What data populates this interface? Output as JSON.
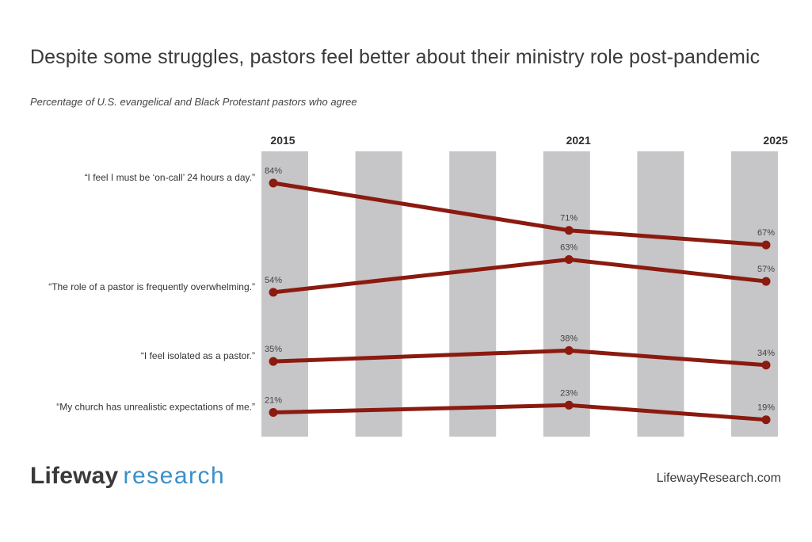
{
  "title": "Despite some struggles, pastors feel better about their ministry role post-pandemic",
  "subtitle": "Percentage of U.S. evangelical and Black Protestant pastors who agree",
  "footer": {
    "brand": "Lifeway",
    "brand_sub": "research",
    "website": "LifewayResearch.com"
  },
  "colors": {
    "line": "#8b1a0f",
    "band": "#c6c5c7",
    "brand_accent": "#3c8fc7"
  },
  "chart_data": {
    "type": "line",
    "title": "Despite some struggles, pastors feel better about their ministry role post-pandemic",
    "subtitle": "Percentage of U.S. evangelical and Black Protestant pastors who agree",
    "x": [
      "2015",
      "2021",
      "2025"
    ],
    "x_numeric": [
      2015,
      2021,
      2025
    ],
    "ylim": [
      0,
      100
    ],
    "value_suffix": "%",
    "series": [
      {
        "name": "“I feel I must be ‘on-call’ 24 hours a day.”",
        "values": [
          84,
          71,
          67
        ]
      },
      {
        "name": "“The role of a pastor is frequently overwhelming.”",
        "values": [
          54,
          63,
          57
        ]
      },
      {
        "name": "“I feel isolated as a pastor.”",
        "values": [
          35,
          38,
          34
        ]
      },
      {
        "name": "“My church has unrealistic expectations of me.”",
        "values": [
          21,
          23,
          19
        ]
      }
    ],
    "background_bands": 6
  }
}
